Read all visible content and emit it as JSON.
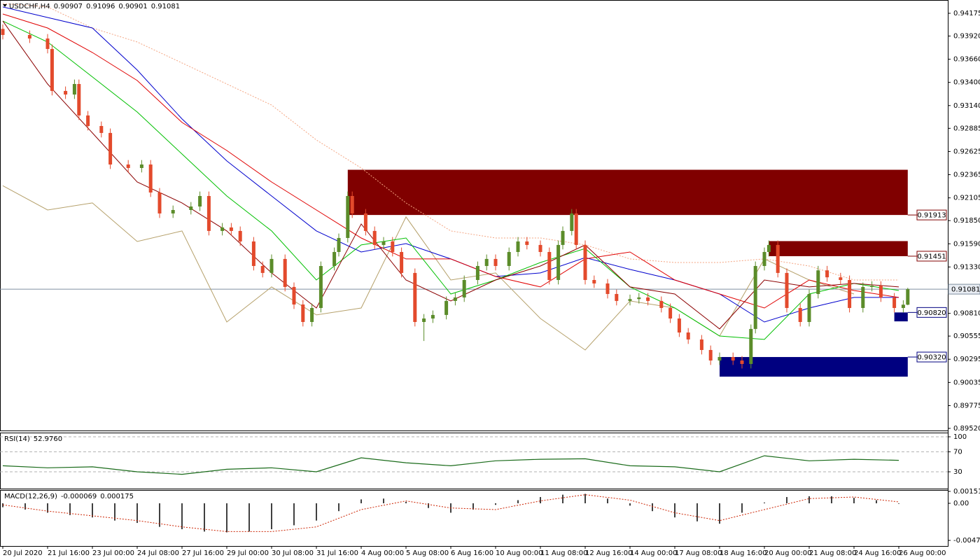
{
  "chart_data": [
    {
      "type": "candlestick",
      "title": "USDCHF,H4",
      "ohlc": [
        0.90907,
        0.91096,
        0.90901,
        0.91081
      ],
      "x": [
        0,
        6,
        10,
        11,
        14,
        16,
        17,
        19,
        22,
        24,
        28,
        31,
        33,
        35,
        38,
        42,
        44,
        46,
        49,
        51,
        53,
        56,
        58,
        60,
        63,
        65,
        67,
        69,
        71,
        74,
        75,
        77,
        78,
        81,
        83,
        85,
        87,
        89,
        92,
        94,
        96,
        99,
        101,
        103,
        106,
        108,
        110,
        113,
        115,
        117,
        120,
        122,
        124,
        125,
        127,
        128,
        130,
        132,
        135,
        137,
        140,
        142,
        144,
        147,
        149,
        151,
        153,
        156,
        158,
        160,
        163,
        165,
        167,
        168,
        170,
        171,
        173,
        175,
        178,
        180,
        182,
        184,
        187,
        189,
        192,
        194,
        196,
        199,
        201,
        202
      ],
      "open": [
        0.94,
        0.93932,
        0.93892,
        0.93775,
        0.93304,
        0.93264,
        0.93382,
        0.93029,
        0.92911,
        0.92833,
        0.92479,
        0.9244,
        0.92479,
        0.92165,
        0.9193,
        0.91969,
        0.92008,
        0.92126,
        0.91734,
        0.91773,
        0.91734,
        0.91616,
        0.91341,
        0.91263,
        0.9142,
        0.91106,
        0.90909,
        0.90713,
        0.9087,
        0.91341,
        0.91498,
        0.91655,
        0.92126,
        0.9193,
        0.91734,
        0.91577,
        0.91616,
        0.91498,
        0.91263,
        0.90713,
        0.90752,
        0.90792,
        0.90949,
        0.90988,
        0.91184,
        0.91341,
        0.9142,
        0.91341,
        0.91498,
        0.91616,
        0.91577,
        0.91498,
        0.91184,
        0.91577,
        0.91734,
        0.9193,
        0.91577,
        0.91184,
        0.91145,
        0.91027,
        0.90949,
        0.9097,
        0.90988,
        0.90949,
        0.9087,
        0.90752,
        0.90595,
        0.90517,
        0.90399,
        0.90281,
        0.9032,
        0.90281,
        0.90242,
        0.90635,
        0.91341,
        0.91498,
        0.91577,
        0.91263,
        0.9087,
        0.90713,
        0.91027,
        0.91292,
        0.91214,
        0.91184,
        0.9087,
        0.91106,
        0.9112,
        0.90988,
        0.9087,
        0.90907
      ],
      "high": [
        0.9405,
        0.93982,
        0.93942,
        0.93825,
        0.93354,
        0.93432,
        0.93432,
        0.93079,
        0.92961,
        0.92883,
        0.92529,
        0.92529,
        0.92529,
        0.92215,
        0.92019,
        0.92058,
        0.92176,
        0.92176,
        0.91823,
        0.91823,
        0.91784,
        0.91666,
        0.91391,
        0.9147,
        0.9147,
        0.91156,
        0.90959,
        0.9092,
        0.91391,
        0.91548,
        0.91705,
        0.92176,
        0.92176,
        0.9198,
        0.91784,
        0.91666,
        0.91666,
        0.91548,
        0.91313,
        0.90802,
        0.90842,
        0.90999,
        0.91038,
        0.91234,
        0.91391,
        0.9147,
        0.9147,
        0.91548,
        0.91666,
        0.91666,
        0.91627,
        0.91548,
        0.91627,
        0.91784,
        0.9198,
        0.9198,
        0.91627,
        0.91234,
        0.91195,
        0.91077,
        0.9102,
        0.91038,
        0.91038,
        0.90999,
        0.9092,
        0.90802,
        0.90645,
        0.90567,
        0.90449,
        0.9037,
        0.9037,
        0.90331,
        0.90685,
        0.91391,
        0.91548,
        0.91627,
        0.91627,
        0.91313,
        0.9092,
        0.91077,
        0.91342,
        0.91342,
        0.91264,
        0.91234,
        0.91156,
        0.9117,
        0.9117,
        0.91038,
        0.90957,
        0.91096
      ],
      "low": [
        0.93882,
        0.93842,
        0.93725,
        0.93254,
        0.93214,
        0.93214,
        0.92979,
        0.92861,
        0.92783,
        0.92429,
        0.9239,
        0.9239,
        0.92115,
        0.9188,
        0.9188,
        0.91919,
        0.91958,
        0.91684,
        0.91684,
        0.91684,
        0.91566,
        0.91291,
        0.91213,
        0.91213,
        0.91056,
        0.90859,
        0.90663,
        0.90663,
        0.9082,
        0.91291,
        0.91448,
        0.91605,
        0.9188,
        0.91684,
        0.91527,
        0.91527,
        0.91448,
        0.91213,
        0.90663,
        0.905,
        0.90702,
        0.90742,
        0.90899,
        0.90938,
        0.91134,
        0.91291,
        0.91291,
        0.91291,
        0.91448,
        0.91527,
        0.91448,
        0.91134,
        0.91134,
        0.91527,
        0.91684,
        0.91527,
        0.91134,
        0.91095,
        0.90977,
        0.90899,
        0.90899,
        0.9092,
        0.90899,
        0.9082,
        0.90702,
        0.90545,
        0.90467,
        0.90349,
        0.90231,
        0.90231,
        0.90231,
        0.90192,
        0.90192,
        0.90585,
        0.91291,
        0.91448,
        0.91213,
        0.9082,
        0.90663,
        0.90663,
        0.90977,
        0.91164,
        0.91134,
        0.9082,
        0.9082,
        0.91056,
        0.90938,
        0.9082,
        0.9082,
        0.90901
      ],
      "close": [
        0.93932,
        0.93892,
        0.93775,
        0.93304,
        0.93264,
        0.93382,
        0.93029,
        0.92911,
        0.92833,
        0.92479,
        0.9244,
        0.92479,
        0.92165,
        0.9193,
        0.91969,
        0.92008,
        0.92126,
        0.91734,
        0.91773,
        0.91734,
        0.91616,
        0.91341,
        0.91263,
        0.9142,
        0.91106,
        0.90909,
        0.90713,
        0.9087,
        0.91341,
        0.91498,
        0.91655,
        0.92126,
        0.9193,
        0.91734,
        0.91577,
        0.91616,
        0.91498,
        0.91263,
        0.90713,
        0.90752,
        0.90792,
        0.90949,
        0.90988,
        0.91184,
        0.91341,
        0.9142,
        0.91341,
        0.91498,
        0.91616,
        0.91577,
        0.91498,
        0.91184,
        0.91577,
        0.91734,
        0.9193,
        0.91577,
        0.91184,
        0.91145,
        0.91027,
        0.90949,
        0.9097,
        0.90988,
        0.90949,
        0.9087,
        0.90752,
        0.90595,
        0.90517,
        0.90399,
        0.90281,
        0.9032,
        0.90281,
        0.90242,
        0.90635,
        0.91341,
        0.91498,
        0.91577,
        0.91263,
        0.9087,
        0.90713,
        0.91027,
        0.91292,
        0.91214,
        0.91184,
        0.9087,
        0.91106,
        0.9112,
        0.90988,
        0.9087,
        0.90907,
        0.91081
      ],
      "up_color": "#5b8c2a",
      "down_color": "#e34a2c",
      "lines": {
        "x": [
          0,
          10,
          20,
          30,
          40,
          50,
          60,
          70,
          80,
          90,
          100,
          110,
          120,
          130,
          140,
          150,
          160,
          170,
          180,
          190,
          200
        ],
        "series": [
          {
            "color": "#f4a582",
            "dash": true,
            "values": [
              0.94285,
              0.94246,
              0.9401,
              0.93853,
              0.93618,
              0.93382,
              0.93146,
              0.92754,
              0.9244,
              0.92048,
              0.91734,
              0.91655,
              0.91655,
              0.91577,
              0.9142,
              0.9138,
              0.9138,
              0.9142,
              0.91341,
              0.91184,
              0.91184
            ]
          },
          {
            "color": "#b5a06a",
            "dash": false,
            "values": [
              0.92241,
              0.91969,
              0.92048,
              0.91616,
              0.91734,
              0.90713,
              0.91106,
              0.90792,
              0.9087,
              0.91891,
              0.91184,
              0.91263,
              0.90752,
              0.90399,
              0.90949,
              0.9087,
              0.90556,
              0.9142,
              0.91184,
              0.91027,
              null
            ]
          },
          {
            "color": "#0000cd",
            "dash": false,
            "values": [
              0.94246,
              0.94128,
              0.9401,
              0.93539,
              0.9299,
              0.92519,
              0.92126,
              0.91734,
              0.91498,
              0.91592,
              0.9142,
              0.91223,
              0.91263,
              0.91435,
              0.91302,
              0.91184,
              0.91027,
              0.90713,
              0.9087,
              0.90988,
              0.90988
            ]
          },
          {
            "color": "#e00000",
            "dash": false,
            "values": [
              0.94167,
              0.9401,
              0.93735,
              0.93421,
              0.92951,
              0.92636,
              0.92283,
              0.91969,
              0.91655,
              0.9142,
              0.9142,
              0.91223,
              0.91106,
              0.9142,
              0.91498,
              0.91184,
              0.91027,
              0.9087,
              0.91184,
              0.91066,
              0.90988
            ]
          },
          {
            "color": "#00c000",
            "dash": false,
            "values": [
              0.94088,
              0.93853,
              0.93461,
              0.93068,
              0.92597,
              0.92126,
              0.91734,
              0.91184,
              0.91577,
              0.91655,
              0.91027,
              0.91184,
              0.9138,
              0.91537,
              0.91106,
              0.9087,
              0.90556,
              0.90517,
              0.91027,
              0.91145,
              0.91066
            ]
          },
          {
            "color": "#8b0000",
            "dash": false,
            "values": [
              0.94088,
              0.93382,
              0.92833,
              0.92283,
              0.92048,
              0.91734,
              0.91263,
              0.9087,
              0.91812,
              0.91184,
              0.90949,
              0.91184,
              0.91341,
              0.91577,
              0.91106,
              0.91027,
              0.90635,
              0.91184,
              0.91106,
              0.91145,
              0.91106
            ]
          }
        ]
      },
      "zones": [
        {
          "x0": 77,
          "x1": 202,
          "edge": {
            "value": 0.91913,
            "label": "0.91913"
          },
          "other_edge": 0.9242,
          "color": "#800000"
        },
        {
          "x0": 171,
          "x1": 202,
          "edge": {
            "value": 0.91451,
            "label": "0.91451"
          },
          "other_edge": 0.9162,
          "color": "#800000"
        },
        {
          "x0": 160,
          "x1": 202,
          "edge": {
            "value": 0.9032,
            "label": "0.90320"
          },
          "other_edge": 0.901,
          "color": "#000080"
        },
        {
          "x0": 199,
          "x1": 202,
          "edge": {
            "value": 0.9082,
            "label": "0.90820"
          },
          "other_edge": 0.9072,
          "color": "#000080"
        }
      ],
      "last_price": {
        "value": 0.91081,
        "label": "0.91081"
      },
      "xlim": [
        -0.625,
        210.9375
      ],
      "ylim": [
        0.89496,
        0.94324
      ],
      "yticks": [
        0.94175,
        {
          "value": 0.9392,
          "label": "0.93920"
        },
        {
          "value": 0.9366,
          "label": "0.93660"
        },
        {
          "value": 0.934,
          "label": "0.93400"
        },
        {
          "value": 0.9314,
          "label": "0.93140"
        },
        0.92885,
        0.92625,
        0.92365,
        0.92105,
        {
          "value": 0.9185,
          "label": "0.91850"
        },
        {
          "value": 0.9159,
          "label": "0.91590"
        },
        {
          "value": 0.9133,
          "label": "0.91330"
        },
        {
          "value": 0.9081,
          "label": "0.90810"
        },
        0.90555,
        0.90295,
        0.90035,
        0.89775,
        {
          "value": 0.8952,
          "label": "0.89520"
        }
      ],
      "xticks": [
        {
          "value": 0,
          "label": "20 Jul 2020"
        },
        {
          "value": 10,
          "label": "21 Jul 16:00"
        },
        {
          "value": 20,
          "label": "23 Jul 00:00"
        },
        {
          "value": 30,
          "label": "24 Jul 08:00"
        },
        {
          "value": 40,
          "label": "27 Jul 16:00"
        },
        {
          "value": 50,
          "label": "29 Jul 00:00"
        },
        {
          "value": 60,
          "label": "30 Jul 08:00"
        },
        {
          "value": 70,
          "label": "31 Jul 16:00"
        },
        {
          "value": 80,
          "label": "4 Aug 00:00"
        },
        {
          "value": 90,
          "label": "5 Aug 08:00"
        },
        {
          "value": 100,
          "label": "6 Aug 16:00"
        },
        {
          "value": 110,
          "label": "10 Aug 00:00"
        },
        {
          "value": 120,
          "label": "11 Aug 08:00"
        },
        {
          "value": 130,
          "label": "12 Aug 16:00"
        },
        {
          "value": 140,
          "label": "14 Aug 00:00"
        },
        {
          "value": 150,
          "label": "17 Aug 08:00"
        },
        {
          "value": 160,
          "label": "18 Aug 16:00"
        },
        {
          "value": 170,
          "label": "20 Aug 00:00"
        },
        {
          "value": 180,
          "label": "21 Aug 08:00"
        },
        {
          "value": 190,
          "label": "24 Aug 16:00"
        },
        {
          "value": 200,
          "label": "26 Aug 00:00"
        }
      ]
    },
    {
      "type": "line",
      "title": "RSI(14)",
      "last": {
        "value": 52.976,
        "label": "52.9760"
      },
      "x": [
        0,
        10,
        20,
        30,
        40,
        50,
        60,
        70,
        80,
        90,
        100,
        110,
        120,
        130,
        140,
        150,
        160,
        170,
        180,
        190,
        200
      ],
      "values": [
        42,
        38,
        40,
        30,
        25,
        35,
        38,
        30,
        58,
        48,
        42,
        52,
        55,
        56,
        42,
        40,
        30,
        62,
        52,
        55,
        52.976
      ],
      "color": "#1a6b1a",
      "ylim": [
        -3.6,
        108.4
      ],
      "yticks": [
        30,
        70,
        100
      ]
    },
    {
      "type": "macd",
      "title": "MACD(12,26,9)",
      "header_values": [
        -6.9e-05,
        0.000175
      ],
      "hist_x": [
        0,
        5,
        10,
        15,
        20,
        25,
        30,
        35,
        40,
        45,
        50,
        55,
        60,
        65,
        70,
        75,
        80,
        85,
        90,
        95,
        100,
        105,
        110,
        115,
        120,
        125,
        130,
        135,
        140,
        145,
        150,
        155,
        160,
        165,
        170,
        175,
        180,
        185,
        190,
        195,
        200
      ],
      "histogram": [
        -0.0005,
        -0.0008,
        -0.0012,
        -0.0015,
        -0.0018,
        -0.0022,
        -0.0025,
        -0.003,
        -0.0033,
        -0.0036,
        -0.0037,
        -0.0036,
        -0.0033,
        -0.0028,
        -0.0022,
        -0.001,
        0.0005,
        0.0006,
        0.0002,
        -0.0006,
        -0.0012,
        -0.0008,
        -0.0002,
        0.0004,
        0.0008,
        0.0011,
        0.0012,
        0.0006,
        -0.0003,
        -0.001,
        -0.0018,
        -0.0023,
        -0.0026,
        -0.0012,
        0.0001,
        0.0008,
        0.0009,
        0.0009,
        0.0007,
        0.0004,
        -6.9e-05
      ],
      "signal_x": [
        0,
        10,
        20,
        30,
        40,
        50,
        60,
        70,
        80,
        90,
        100,
        110,
        120,
        130,
        140,
        150,
        160,
        170,
        180,
        190,
        200
      ],
      "signal": [
        -0.0002,
        -0.001,
        -0.0016,
        -0.0022,
        -0.003,
        -0.0036,
        -0.0036,
        -0.003,
        -0.0008,
        0.0003,
        -0.0006,
        -0.0008,
        0.0003,
        0.0011,
        0.0004,
        -0.0012,
        -0.0022,
        -0.0008,
        0.0006,
        0.0008,
        0.000175
      ],
      "hist_color": "#000000",
      "signal_color": "#cc2200",
      "ylim": [
        -0.005438,
        0.001694
      ],
      "yticks": [
        0.001519,
        {
          "value": 0,
          "label": "0.00"
        },
        -0.004725
      ]
    }
  ]
}
